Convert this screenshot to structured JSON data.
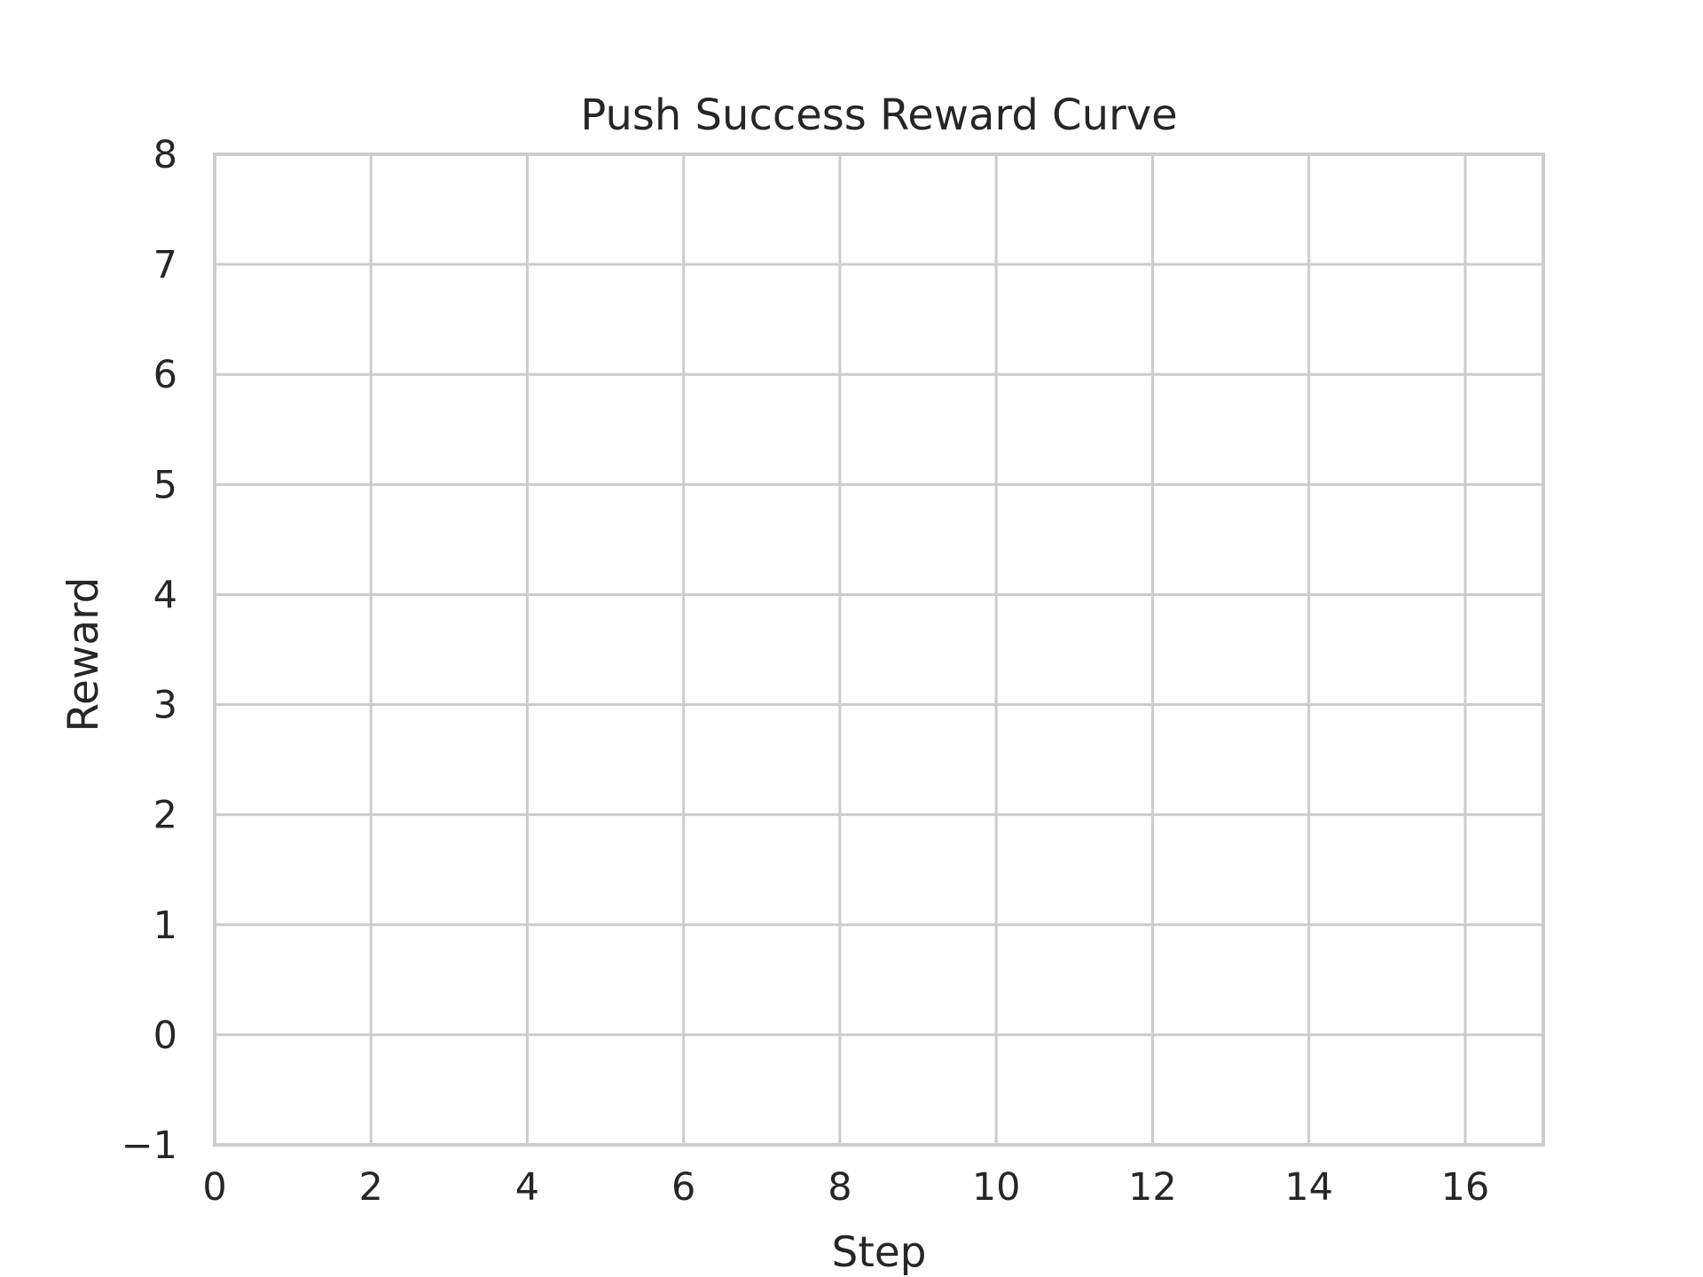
{
  "chart_data": {
    "type": "line",
    "title": "Push Success Reward Curve",
    "xlabel": "Step",
    "ylabel": "Reward",
    "xlim": [
      0,
      17
    ],
    "ylim": [
      -1,
      8
    ],
    "x_ticks": [
      0,
      2,
      4,
      6,
      8,
      10,
      12,
      14,
      16
    ],
    "x_tick_labels": [
      "0",
      "2",
      "4",
      "6",
      "8",
      "10",
      "12",
      "14",
      "16"
    ],
    "y_ticks": [
      -1,
      0,
      1,
      2,
      3,
      4,
      5,
      6,
      7,
      8
    ],
    "y_tick_labels": [
      "−1",
      "0",
      "1",
      "2",
      "3",
      "4",
      "5",
      "6",
      "7",
      "8"
    ],
    "grid": true,
    "series": [],
    "colors": {
      "grid": "#cccccc",
      "text": "#262626",
      "background": "#ffffff"
    }
  }
}
